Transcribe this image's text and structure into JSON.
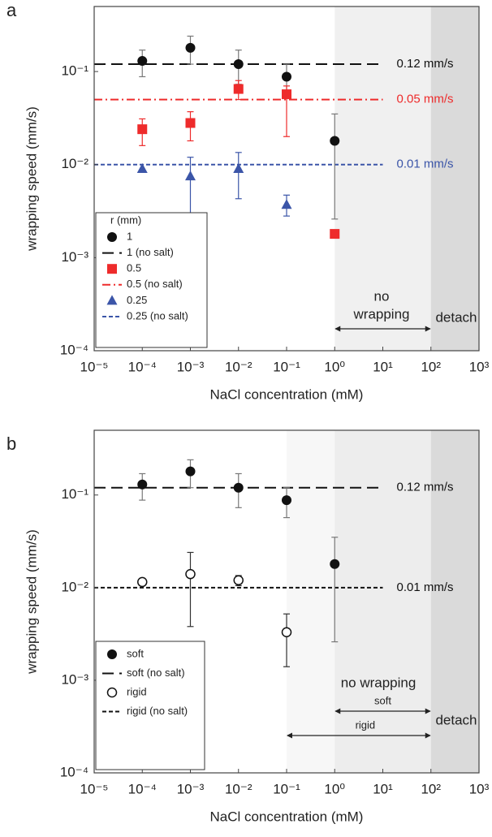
{
  "chart_data": [
    {
      "type": "scatter",
      "panel": "a",
      "x_label": "NaCl concentration (mM)",
      "y_label": "wrapping speed (mm/s)",
      "log_x": true,
      "log_y": true,
      "xlim": [
        1e-05,
        1000
      ],
      "ylim": [
        0.0001,
        0.5
      ],
      "xticks": [
        {
          "value": 1e-05,
          "label": "10⁻⁵"
        },
        {
          "value": 0.0001,
          "label": "10⁻⁴"
        },
        {
          "value": 0.001,
          "label": "10⁻³"
        },
        {
          "value": 0.01,
          "label": "10⁻²"
        },
        {
          "value": 0.1,
          "label": "10⁻¹"
        },
        {
          "value": 1,
          "label": "10⁰"
        },
        {
          "value": 10,
          "label": "10¹"
        },
        {
          "value": 100,
          "label": "10²"
        },
        {
          "value": 1000,
          "label": "10³"
        }
      ],
      "yticks": [
        {
          "value": 0.0001,
          "label": "10⁻⁴"
        },
        {
          "value": 0.001,
          "label": "10⁻³"
        },
        {
          "value": 0.01,
          "label": "10⁻²"
        },
        {
          "value": 0.1,
          "label": "10⁻¹"
        }
      ],
      "regions": [
        {
          "from": 1,
          "to": 100,
          "color": "#f0f0f0"
        },
        {
          "from": 100,
          "to": 1000,
          "color": "#dadada"
        }
      ],
      "legend_title": "r (mm)",
      "series": [
        {
          "name": "1",
          "kind": "points",
          "marker": "circle",
          "color": "#111111",
          "bar_color": "#777777",
          "x": [
            0.0001,
            0.001,
            0.01,
            0.1,
            1
          ],
          "values": [
            0.13,
            0.18,
            0.12,
            0.088,
            0.018
          ],
          "err_low": [
            0.088,
            0.12,
            0.073,
            0.06,
            0.0026
          ],
          "err_high": [
            0.17,
            0.24,
            0.17,
            0.12,
            0.035
          ]
        },
        {
          "name": "1 (no salt)",
          "kind": "hline",
          "dash": "14,7",
          "color": "#111111",
          "hline": 0.12,
          "x_range": [
            1e-05,
            10
          ],
          "label": "0.12 mm/s"
        },
        {
          "name": "0.5",
          "kind": "points",
          "marker": "square",
          "color": "#ee2b2b",
          "bar_color": "#ee2b2b",
          "x": [
            0.0001,
            0.001,
            0.01,
            0.1,
            1
          ],
          "values": [
            0.024,
            0.028,
            0.065,
            0.057,
            0.0018
          ],
          "err_low": [
            0.016,
            0.018,
            0.05,
            0.02,
            null
          ],
          "err_high": [
            0.031,
            0.037,
            0.08,
            0.07,
            null
          ]
        },
        {
          "name": "0.5 (no salt)",
          "kind": "hline",
          "dash": "10,4,2,4",
          "color": "#ee2b2b",
          "hline": 0.05,
          "x_range": [
            1e-05,
            10
          ],
          "label": "0.05 mm/s"
        },
        {
          "name": "0.25",
          "kind": "points",
          "marker": "triangle",
          "color": "#3b55a8",
          "bar_color": "#3b55a8",
          "x": [
            0.0001,
            0.001,
            0.01,
            0.1
          ],
          "values": [
            0.009,
            0.0075,
            0.009,
            0.0037
          ],
          "err_low": [
            null,
            0.0028,
            0.0043,
            0.0028
          ],
          "err_high": [
            null,
            0.012,
            0.0135,
            0.0047
          ]
        },
        {
          "name": "0.25 (no salt)",
          "kind": "hline",
          "dash": "5,3",
          "color": "#3b55a8",
          "hline": 0.01,
          "x_range": [
            1e-05,
            10
          ],
          "label": "0.01 mm/s"
        }
      ],
      "arrows": [
        {
          "from": 1,
          "to": 100
        }
      ],
      "annotations": [
        "no",
        "wrapping",
        "detach"
      ]
    },
    {
      "type": "scatter",
      "panel": "b",
      "x_label": "NaCl concentration (mM)",
      "y_label": "wrapping speed (mm/s)",
      "log_x": true,
      "log_y": true,
      "xlim": [
        1e-05,
        1000
      ],
      "ylim": [
        0.0001,
        0.5
      ],
      "xticks": [
        {
          "value": 1e-05,
          "label": "10⁻⁵"
        },
        {
          "value": 0.0001,
          "label": "10⁻⁴"
        },
        {
          "value": 0.001,
          "label": "10⁻³"
        },
        {
          "value": 0.01,
          "label": "10⁻²"
        },
        {
          "value": 0.1,
          "label": "10⁻¹"
        },
        {
          "value": 1,
          "label": "10⁰"
        },
        {
          "value": 10,
          "label": "10¹"
        },
        {
          "value": 100,
          "label": "10²"
        },
        {
          "value": 1000,
          "label": "10³"
        }
      ],
      "yticks": [
        {
          "value": 0.0001,
          "label": "10⁻⁴"
        },
        {
          "value": 0.001,
          "label": "10⁻³"
        },
        {
          "value": 0.01,
          "label": "10⁻²"
        },
        {
          "value": 0.1,
          "label": "10⁻¹"
        }
      ],
      "regions": [
        {
          "from": 0.1,
          "to": 1,
          "color": "#f7f7f7"
        },
        {
          "from": 1,
          "to": 100,
          "color": "#ededed"
        },
        {
          "from": 100,
          "to": 1000,
          "color": "#dadada"
        }
      ],
      "series": [
        {
          "name": "soft",
          "kind": "points",
          "marker": "circle",
          "color": "#111111",
          "bar_color": "#777777",
          "x": [
            0.0001,
            0.001,
            0.01,
            0.1,
            1
          ],
          "values": [
            0.13,
            0.18,
            0.12,
            0.088,
            0.018
          ],
          "err_low": [
            0.088,
            0.12,
            0.073,
            0.057,
            0.0026
          ],
          "err_high": [
            0.17,
            0.24,
            0.17,
            0.12,
            0.035
          ]
        },
        {
          "name": "soft (no salt)",
          "kind": "hline",
          "dash": "14,7",
          "color": "#111111",
          "hline": 0.12,
          "x_range": [
            1e-05,
            10
          ],
          "label": "0.12 mm/s"
        },
        {
          "name": "rigid",
          "kind": "points",
          "marker": "open-circle",
          "color": "#111111",
          "bar_color": "#333333",
          "x": [
            0.0001,
            0.001,
            0.01,
            0.1
          ],
          "values": [
            0.0115,
            0.014,
            0.012,
            0.0033
          ],
          "err_low": [
            null,
            0.0038,
            0.0105,
            0.0014
          ],
          "err_high": [
            null,
            0.024,
            0.0135,
            0.0052
          ]
        },
        {
          "name": "rigid (no salt)",
          "kind": "hline",
          "dash": "5,3",
          "color": "#111111",
          "hline": 0.01,
          "x_range": [
            1e-05,
            10
          ],
          "label": "0.01 mm/s"
        }
      ],
      "arrows": [
        {
          "from": 1,
          "to": 100,
          "label": "soft"
        },
        {
          "from": 0.1,
          "to": 100,
          "label": "rigid"
        }
      ],
      "annotations": [
        "no wrapping",
        "detach"
      ]
    }
  ]
}
